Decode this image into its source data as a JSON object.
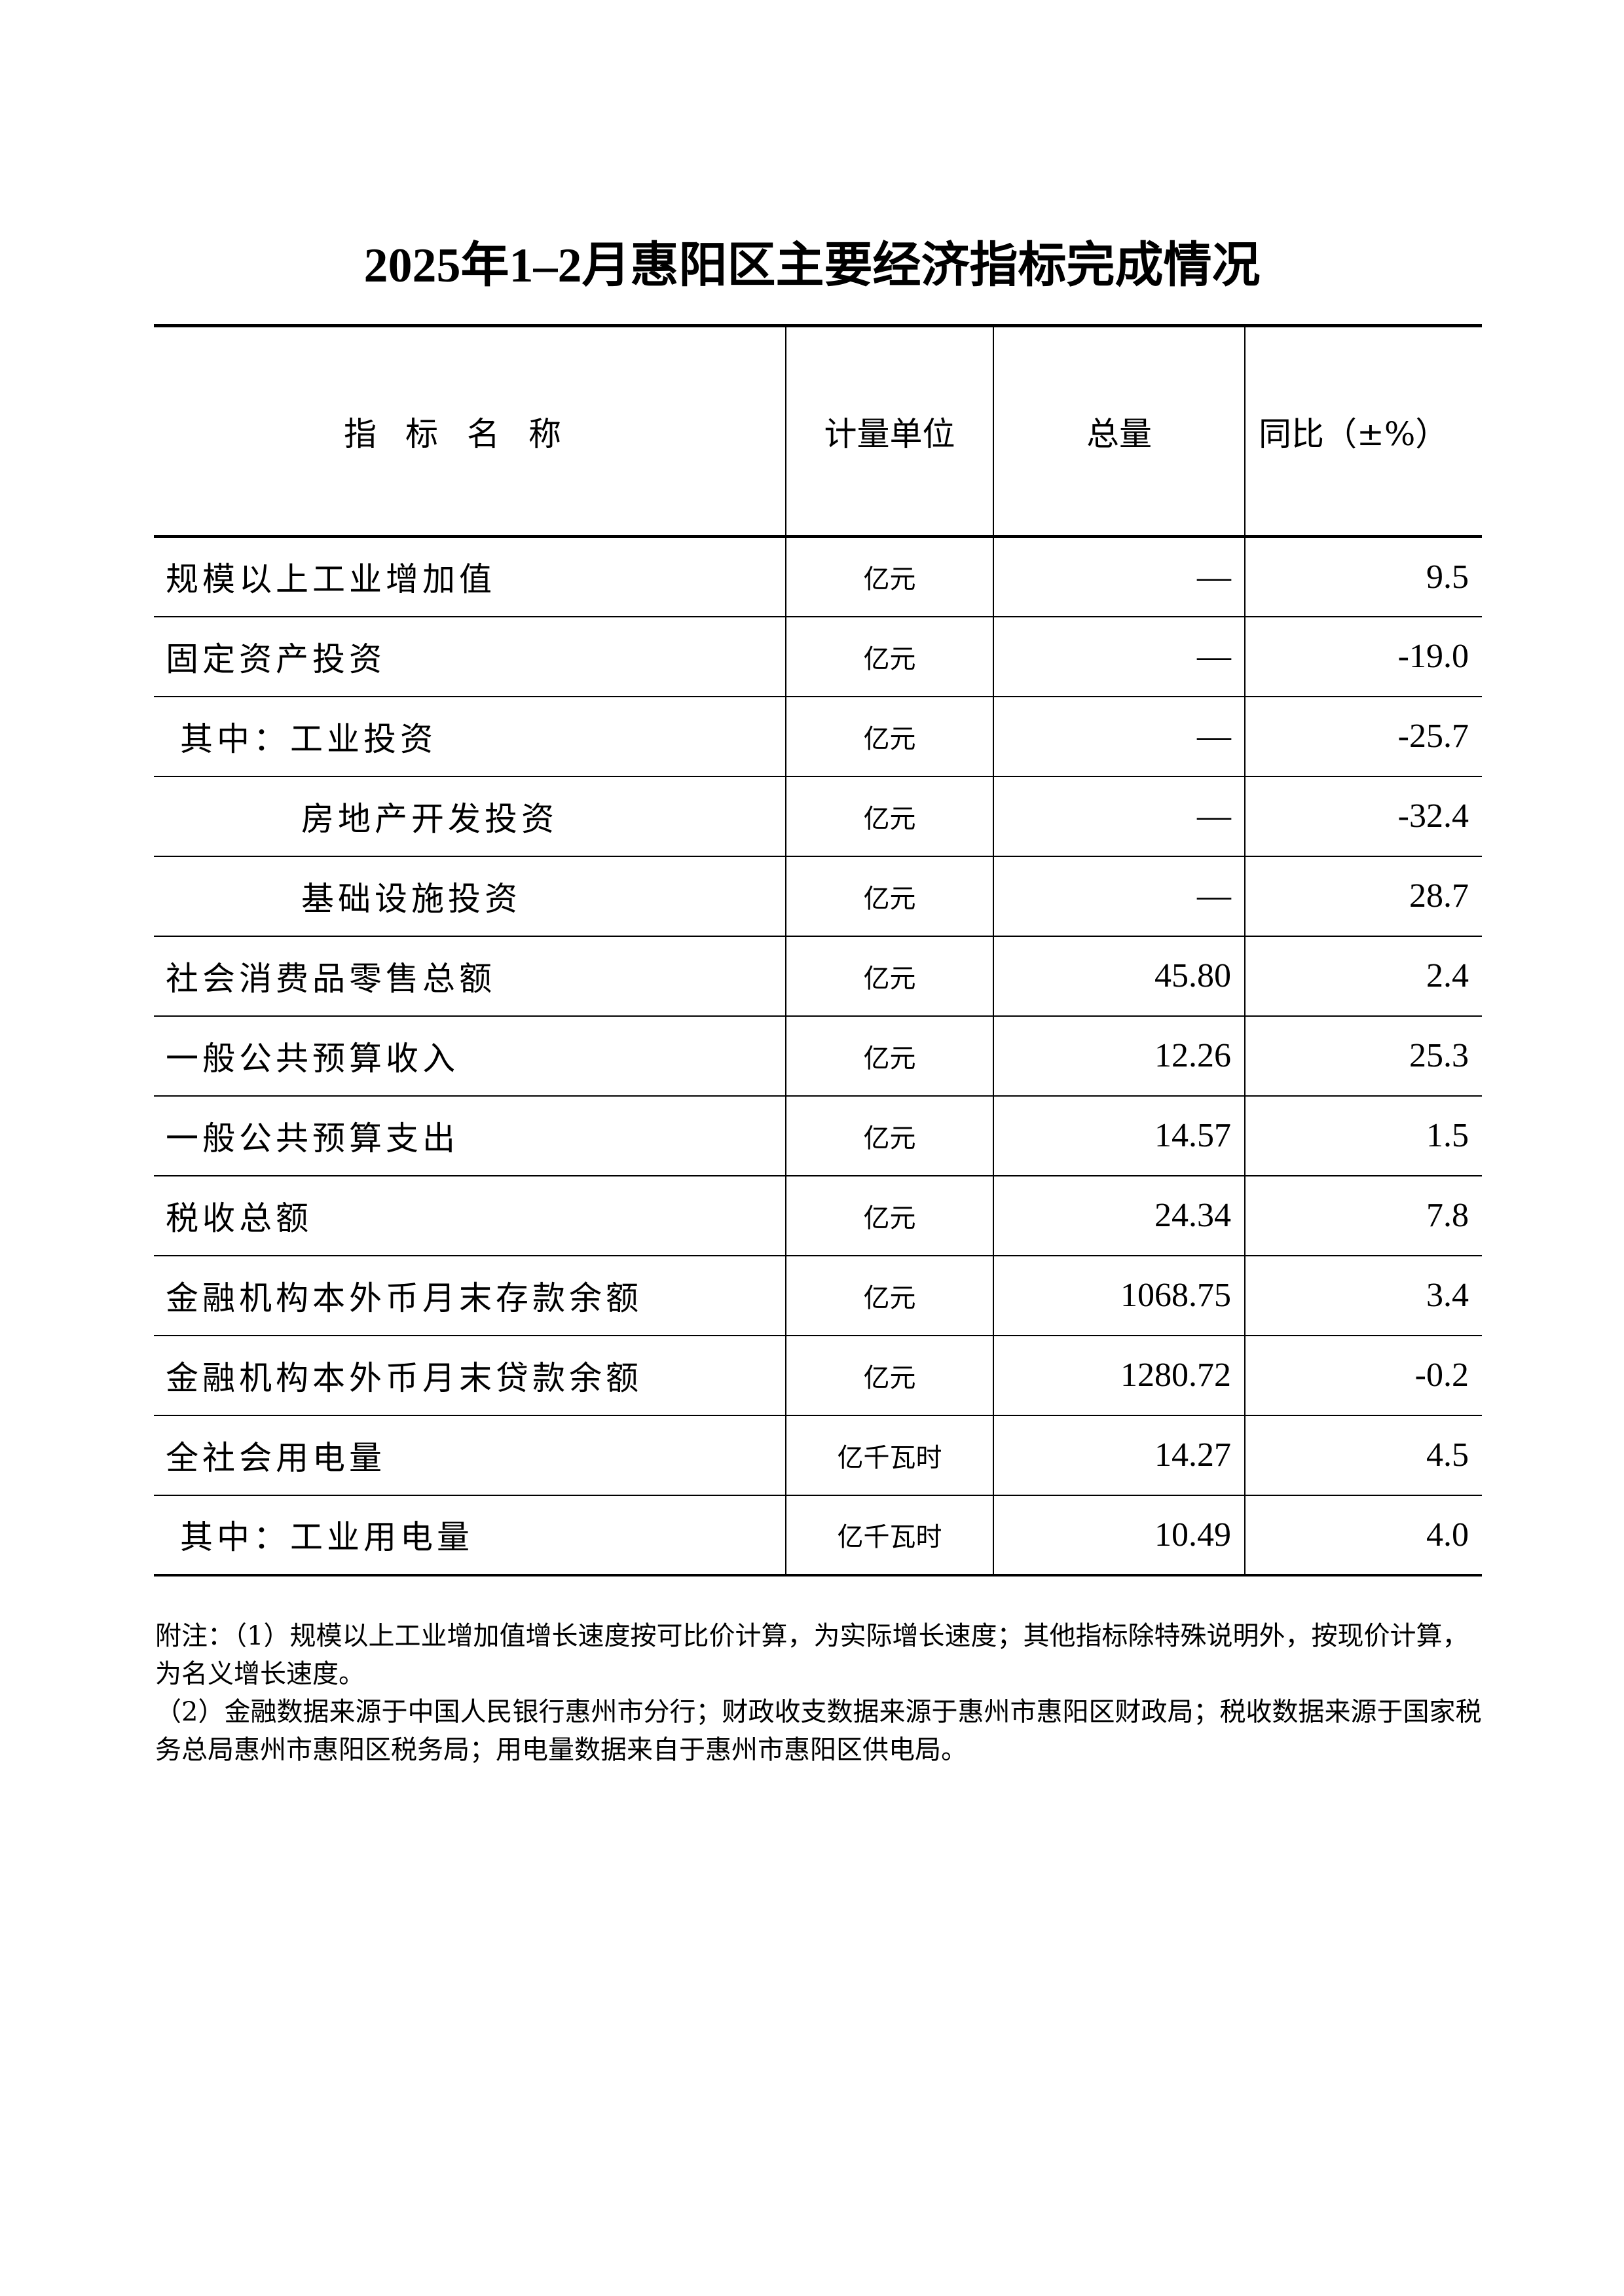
{
  "title": "2025年1–2月惠阳区主要经济指标完成情况",
  "table": {
    "headers": [
      "指标名称",
      "计量单位",
      "总量",
      "同比（±%）"
    ],
    "rows": [
      {
        "name": "规模以上工业增加值",
        "unit": "亿元",
        "total": "—",
        "yoy": "9.5",
        "indent": 0
      },
      {
        "name": "固定资产投资",
        "unit": "亿元",
        "total": "—",
        "yoy": "-19.0",
        "indent": 0
      },
      {
        "name": "其中：工业投资",
        "unit": "亿元",
        "total": "—",
        "yoy": "-25.7",
        "indent": 1
      },
      {
        "name": "房地产开发投资",
        "unit": "亿元",
        "total": "—",
        "yoy": "-32.4",
        "indent": 2
      },
      {
        "name": "基础设施投资",
        "unit": "亿元",
        "total": "—",
        "yoy": "28.7",
        "indent": 2
      },
      {
        "name": "社会消费品零售总额",
        "unit": "亿元",
        "total": "45.80",
        "yoy": "2.4",
        "indent": 0
      },
      {
        "name": "一般公共预算收入",
        "unit": "亿元",
        "total": "12.26",
        "yoy": "25.3",
        "indent": 0
      },
      {
        "name": "一般公共预算支出",
        "unit": "亿元",
        "total": "14.57",
        "yoy": "1.5",
        "indent": 0
      },
      {
        "name": "税收总额",
        "unit": "亿元",
        "total": "24.34",
        "yoy": "7.8",
        "indent": 0
      },
      {
        "name": "金融机构本外币月末存款余额",
        "unit": "亿元",
        "total": "1068.75",
        "yoy": "3.4",
        "indent": 0
      },
      {
        "name": "金融机构本外币月末贷款余额",
        "unit": "亿元",
        "total": "1280.72",
        "yoy": "-0.2",
        "indent": 0
      },
      {
        "name": "全社会用电量",
        "unit": "亿千瓦时",
        "total": "14.27",
        "yoy": "4.5",
        "indent": 0
      },
      {
        "name": "其中：工业用电量",
        "unit": "亿千瓦时",
        "total": "10.49",
        "yoy": "4.0",
        "indent": 1
      }
    ]
  },
  "notes": [
    "附注：（1）规模以上工业增加值增长速度按可比价计算，为实际增长速度；其他指标除特殊说明外，按现价计算，为名义增长速度。",
    "（2）金融数据来源于中国人民银行惠州市分行；财政收支数据来源于惠州市惠阳区财政局；税收数据来源于国家税务总局惠州市惠阳区税务局；用电量数据来自于惠州市惠阳区供电局。"
  ]
}
